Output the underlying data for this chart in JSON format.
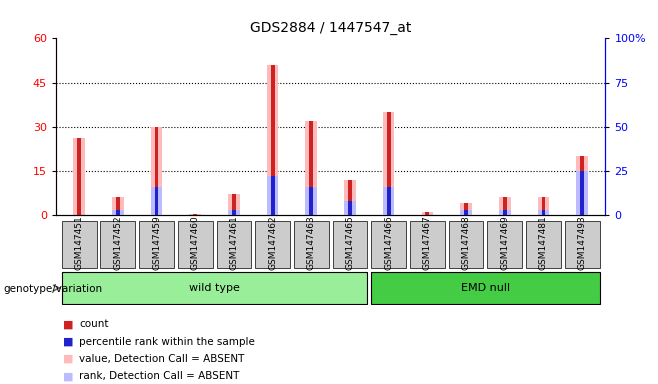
{
  "title": "GDS2884 / 1447547_at",
  "samples": [
    "GSM147451",
    "GSM147452",
    "GSM147459",
    "GSM147460",
    "GSM147461",
    "GSM147462",
    "GSM147463",
    "GSM147465",
    "GSM147466",
    "GSM147467",
    "GSM147468",
    "GSM147469",
    "GSM147481",
    "GSM147493"
  ],
  "wt_group": [
    "GSM147451",
    "GSM147452",
    "GSM147459",
    "GSM147460",
    "GSM147461",
    "GSM147462",
    "GSM147463",
    "GSM147465"
  ],
  "emd_group": [
    "GSM147466",
    "GSM147467",
    "GSM147468",
    "GSM147469",
    "GSM147481",
    "GSM147493"
  ],
  "count_values": [
    26,
    6,
    30,
    0.5,
    7,
    51,
    32,
    12,
    35,
    1,
    4,
    6,
    6,
    20
  ],
  "rank_values": [
    0,
    3,
    16,
    0,
    3,
    22,
    16,
    8,
    16,
    0,
    3,
    3,
    3,
    25
  ],
  "absent_value": [
    26,
    6,
    30,
    0.5,
    7,
    51,
    32,
    12,
    35,
    1,
    4,
    6,
    6,
    20
  ],
  "absent_rank": [
    0,
    3,
    16,
    0,
    3,
    22,
    16,
    8,
    16,
    0,
    3,
    3,
    3,
    25
  ],
  "ylim_left": [
    0,
    60
  ],
  "ylim_right": [
    0,
    100
  ],
  "yticks_left": [
    0,
    15,
    30,
    45,
    60
  ],
  "yticks_right": [
    0,
    25,
    50,
    75,
    100
  ],
  "ytick_labels_right": [
    "0",
    "25",
    "50",
    "75",
    "100%"
  ],
  "color_count": "#cc2222",
  "color_rank": "#2222cc",
  "color_absent_value": "#ffbbbb",
  "color_absent_rank": "#bbbbff",
  "color_wt": "#99ee99",
  "color_emd": "#44cc44",
  "color_sample_bg": "#cccccc",
  "legend_items": [
    {
      "label": "count",
      "color": "#cc2222"
    },
    {
      "label": "percentile rank within the sample",
      "color": "#2222cc"
    },
    {
      "label": "value, Detection Call = ABSENT",
      "color": "#ffbbbb"
    },
    {
      "label": "rank, Detection Call = ABSENT",
      "color": "#bbbbff"
    }
  ],
  "genotype_label": "genotype/variation"
}
